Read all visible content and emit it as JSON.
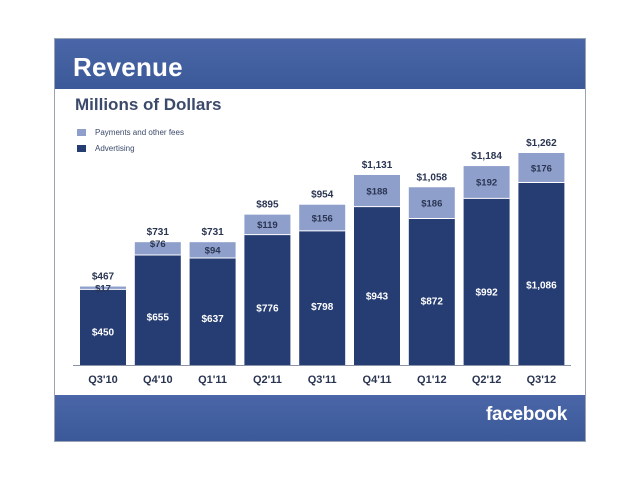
{
  "slide": {
    "title": "Revenue",
    "subtitle": "Millions of Dollars",
    "footer_logo": "facebook"
  },
  "colors": {
    "header": "#3b5998",
    "advertising": "#263d73",
    "payments": "#8f9fcc",
    "text": "#2a3552"
  },
  "chart_data": {
    "type": "bar",
    "stacked": true,
    "title": "Revenue",
    "subtitle": "Millions of Dollars",
    "unit": "Millions of Dollars",
    "legend_position": "top-left",
    "grid": false,
    "categories": [
      "Q3'10",
      "Q4'10",
      "Q1'11",
      "Q2'11",
      "Q3'11",
      "Q4'11",
      "Q1'12",
      "Q2'12",
      "Q3'12"
    ],
    "series": [
      {
        "name": "Advertising",
        "values": [
          450,
          655,
          637,
          776,
          798,
          943,
          872,
          992,
          1086
        ],
        "labels": [
          "$450",
          "$655",
          "$637",
          "$776",
          "$798",
          "$943",
          "$872",
          "$992",
          "$1,086"
        ]
      },
      {
        "name": "Payments and other fees",
        "values": [
          17,
          76,
          94,
          119,
          156,
          188,
          186,
          192,
          176
        ],
        "labels": [
          "$17",
          "$76",
          "$94",
          "$119",
          "$156",
          "$188",
          "$186",
          "$192",
          "$176"
        ]
      }
    ],
    "totals": [
      467,
      731,
      731,
      895,
      954,
      1131,
      1058,
      1184,
      1262
    ],
    "total_labels": [
      "$467",
      "$731",
      "$731",
      "$895",
      "$954",
      "$1,131",
      "$1,058",
      "$1,184",
      "$1,262"
    ],
    "legend": [
      "Payments and other fees",
      "Advertising"
    ],
    "ylim": [
      0,
      1300
    ]
  }
}
